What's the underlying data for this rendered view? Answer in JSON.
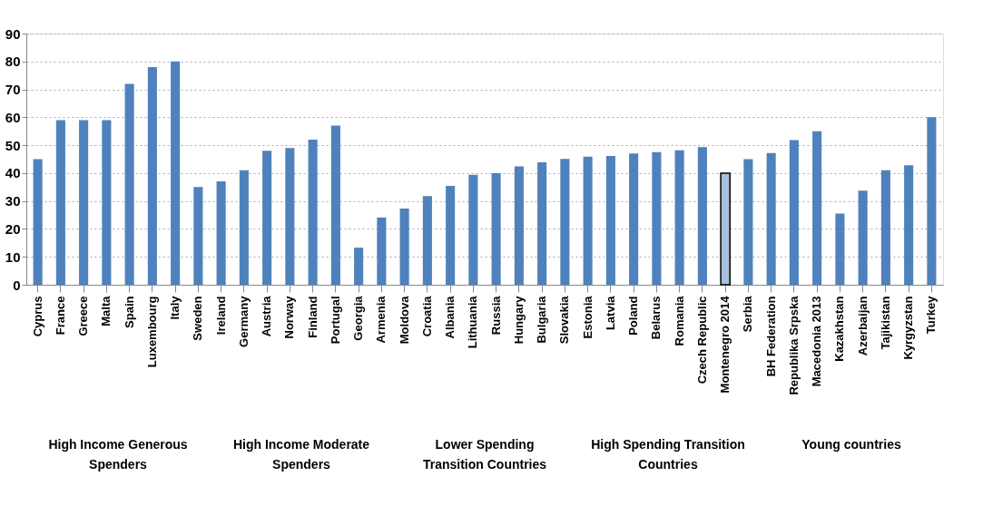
{
  "chart_data": {
    "type": "bar",
    "categories": [
      "Cyprus",
      "France",
      "Greece",
      "Malta",
      "Spain",
      "Luxembourg",
      "Italy",
      "Sweden",
      "Ireland",
      "Germany",
      "Austria",
      "Norway",
      "Finland",
      "Portugal",
      "Georgia",
      "Armenia",
      "Moldova",
      "Croatia",
      "Albania",
      "Lithuania",
      "Russia",
      "Hungary",
      "Bulgaria",
      "Slovakia",
      "Estonia",
      "Latvia",
      "Poland",
      "Belarus",
      "Romania",
      "Czech Republic",
      "Montenegro 2014",
      "Serbia",
      "BH Federation",
      "Republika Srpska",
      "Macedonia 2013",
      "Kazakhstan",
      "Azerbaijan",
      "Tajikistan",
      "Kyrgyzstan",
      "Turkey"
    ],
    "values": [
      45,
      59,
      59,
      59,
      72,
      78,
      80,
      35,
      37,
      41,
      48,
      49,
      52,
      57,
      13.3,
      24.1,
      27.3,
      31.8,
      35.4,
      39.4,
      40,
      42.4,
      43.9,
      45.1,
      45.9,
      46.1,
      47,
      47.5,
      48.2,
      49.3,
      40,
      45,
      47.2,
      51.8,
      55,
      25.5,
      33.7,
      41,
      42.8,
      60
    ],
    "colors": [
      "#4f81bd",
      "#4f81bd",
      "#4f81bd",
      "#4f81bd",
      "#4f81bd",
      "#4f81bd",
      "#4f81bd",
      "#4f81bd",
      "#4f81bd",
      "#4f81bd",
      "#4f81bd",
      "#4f81bd",
      "#4f81bd",
      "#4f81bd",
      "#4f81bd",
      "#4f81bd",
      "#4f81bd",
      "#4f81bd",
      "#4f81bd",
      "#4f81bd",
      "#4f81bd",
      "#4f81bd",
      "#4f81bd",
      "#4f81bd",
      "#4f81bd",
      "#4f81bd",
      "#4f81bd",
      "#4f81bd",
      "#4f81bd",
      "#4f81bd",
      "#a7c0de",
      "#4f81bd",
      "#4f81bd",
      "#4f81bd",
      "#4f81bd",
      "#4f81bd",
      "#4f81bd",
      "#4f81bd",
      "#4f81bd",
      "#4f81bd"
    ],
    "ylim": [
      0,
      90
    ],
    "yticks": [
      0,
      10,
      20,
      30,
      40,
      50,
      60,
      70,
      80,
      90
    ],
    "grid": "y",
    "annotations": [
      "High Income Generous Spenders",
      "High Income Moderate Spenders",
      "Lower Spending Transition Countries",
      "High Spending Transition Countries",
      "Young countries"
    ]
  }
}
